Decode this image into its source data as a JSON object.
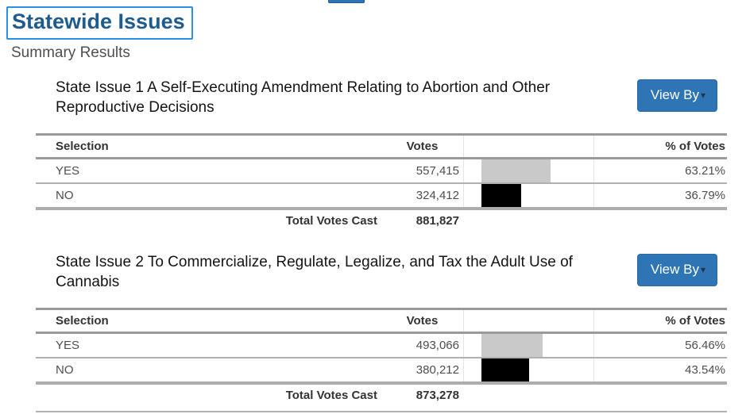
{
  "page": {
    "title": "Statewide Issues",
    "subtitle": "Summary Results"
  },
  "colors": {
    "title_text": "#1e5b8e",
    "focus_ring": "#2b8fe3",
    "button_bg": "#2e75b6",
    "yes_bar": "#c9c9c9",
    "no_bar": "#000000"
  },
  "view_by": {
    "label": "View By",
    "caret": "▾"
  },
  "table_headers": {
    "selection": "Selection",
    "votes": "Votes",
    "pct": "% of Votes"
  },
  "total_label": "Total Votes Cast",
  "contests": [
    {
      "title": "State Issue 1 A Self-Executing Amendment Relating to Abortion and Other Reproductive Decisions",
      "rows": [
        {
          "selection": "YES",
          "votes": "557,415",
          "pct": "63.21%",
          "pct_value": 63.21,
          "bar_color": "#c9c9c9"
        },
        {
          "selection": "NO",
          "votes": "324,412",
          "pct": "36.79%",
          "pct_value": 36.79,
          "bar_color": "#000000"
        }
      ],
      "total_votes": "881,827"
    },
    {
      "title": "State Issue 2 To Commercialize, Regulate, Legalize, and Tax the Adult Use of Cannabis",
      "rows": [
        {
          "selection": "YES",
          "votes": "493,066",
          "pct": "56.46%",
          "pct_value": 56.46,
          "bar_color": "#c9c9c9"
        },
        {
          "selection": "NO",
          "votes": "380,212",
          "pct": "43.54%",
          "pct_value": 43.54,
          "bar_color": "#000000"
        }
      ],
      "total_votes": "873,278"
    }
  ]
}
